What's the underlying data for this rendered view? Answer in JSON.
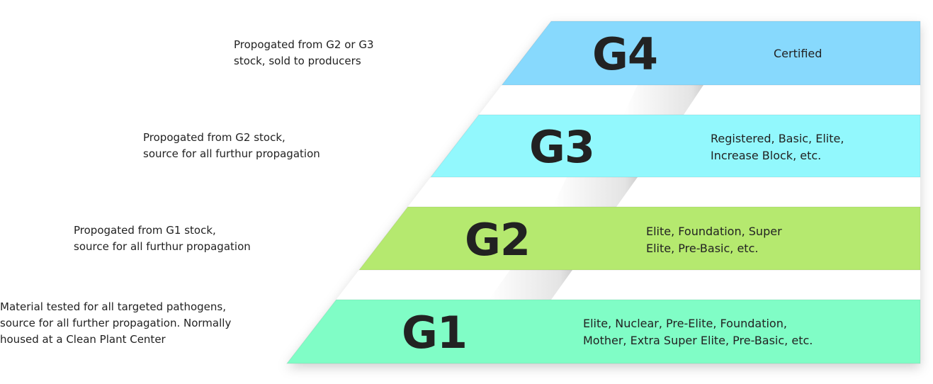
{
  "tiers": [
    {
      "label": "G4",
      "names": "Certified",
      "description": "Propogated from G2 or G3\nstock, sold to producers",
      "color": "#87d9fd"
    },
    {
      "label": "G3",
      "names": "Registered, Basic, Elite,\nIncrease Block, etc.",
      "description": "Propogated from G2 stock,\nsource for all furthur propagation",
      "color": "#92f8fd"
    },
    {
      "label": "G2",
      "names": "Elite, Foundation, Super\nElite, Pre-Basic, etc.",
      "description": "Propogated from G1 stock,\nsource for all furthur propagation",
      "color": "#b5e96f"
    },
    {
      "label": "G1",
      "names": "Elite, Nuclear, Pre-Elite, Foundation,\nMother, Extra Super Elite, Pre-Basic, etc.",
      "description": "Material tested for all targeted pathogens,\nsource for all further propagation. Normally\nhoused at a Clean Plant Center",
      "color": "#80fdc6"
    }
  ]
}
